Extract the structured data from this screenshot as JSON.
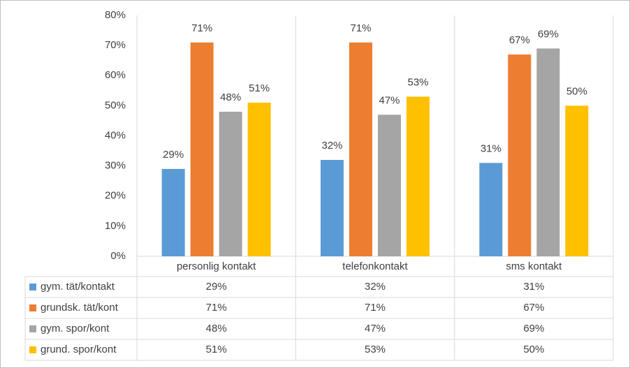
{
  "chart_data": {
    "type": "bar",
    "categories": [
      "personlig kontakt",
      "telefonkontakt",
      "sms kontakt"
    ],
    "series": [
      {
        "name": "gym. tät/kontakt",
        "color": "#5b9bd5",
        "values": [
          29,
          32,
          31
        ],
        "value_labels": [
          "29%",
          "32%",
          "31%"
        ]
      },
      {
        "name": "grundsk. tät/kont",
        "color": "#ed7d31",
        "values": [
          71,
          71,
          67
        ],
        "value_labels": [
          "71%",
          "71%",
          "67%"
        ]
      },
      {
        "name": "gym. spor/kont",
        "color": "#a5a5a5",
        "values": [
          48,
          47,
          69
        ],
        "value_labels": [
          "48%",
          "47%",
          "69%"
        ]
      },
      {
        "name": "grund. spor/kont",
        "color": "#ffc000",
        "values": [
          51,
          53,
          50
        ],
        "value_labels": [
          "51%",
          "53%",
          "50%"
        ]
      }
    ],
    "ylim": [
      0,
      80
    ],
    "yticks": [
      {
        "value": 0,
        "label": "0%"
      },
      {
        "value": 10,
        "label": "10%"
      },
      {
        "value": 20,
        "label": "20%"
      },
      {
        "value": 30,
        "label": "30%"
      },
      {
        "value": 40,
        "label": "40%"
      },
      {
        "value": 50,
        "label": "50%"
      },
      {
        "value": 60,
        "label": "60%"
      },
      {
        "value": 70,
        "label": "70%"
      },
      {
        "value": 80,
        "label": "80%"
      }
    ],
    "grid": false,
    "data_table": true
  }
}
